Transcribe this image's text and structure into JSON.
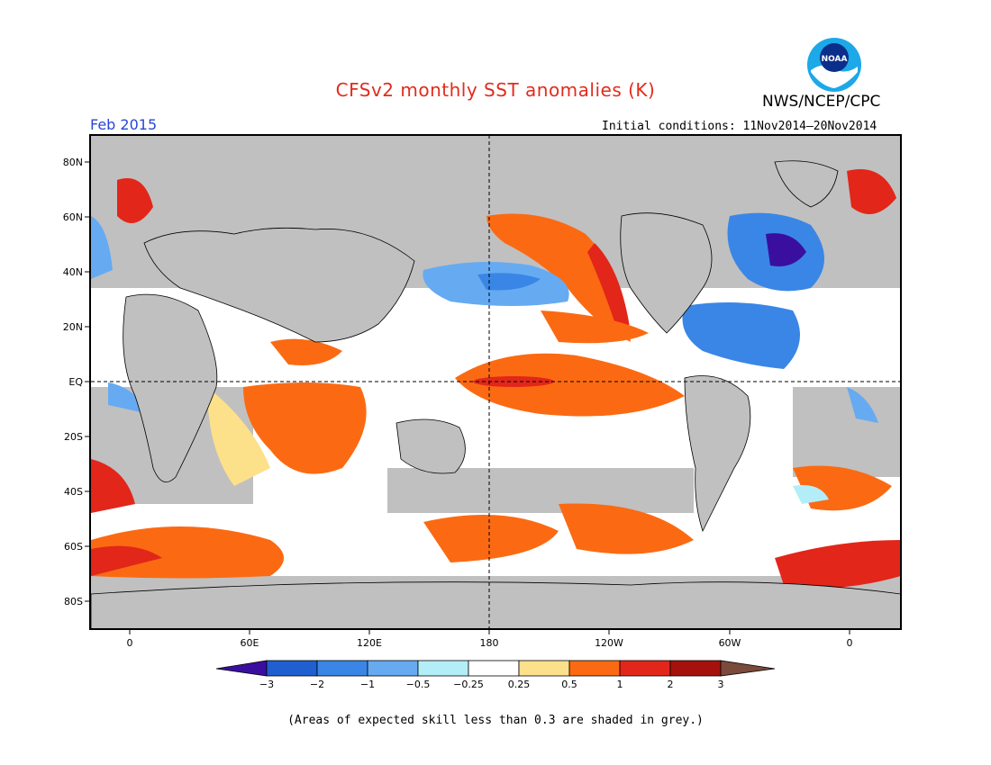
{
  "title": "CFSv2 monthly SST anomalies (K)",
  "valid_month": "Feb 2015",
  "agency": "NWS/NCEP/CPC",
  "logo_text": "NOAA",
  "initial_conditions": "Initial conditions: 11Nov2014–20Nov2014",
  "footnote": "(Areas of expected skill less than 0.3 are shaded in grey.)",
  "lat_labels": [
    "80N",
    "60N",
    "40N",
    "20N",
    "EQ",
    "20S",
    "40S",
    "60S",
    "80S"
  ],
  "lon_labels": [
    "0",
    "60E",
    "120E",
    "180",
    "120W",
    "60W",
    "0"
  ],
  "colorbar": {
    "labels": [
      "−3",
      "−2",
      "−1",
      "−0.5",
      "−0.25",
      "0.25",
      "0.5",
      "1",
      "2",
      "3"
    ],
    "colors": [
      "#3a0fa0",
      "#1f5fd0",
      "#3a86e6",
      "#66aaf2",
      "#b3eef8",
      "#ffffff",
      "#fde08a",
      "#fb6a12",
      "#e2261a",
      "#a5120e",
      "#7a4a3a"
    ]
  },
  "colors": {
    "land": "#c0c0c0",
    "no_skill_grey": "#c0c0c0",
    "title": "#e32b1c",
    "date": "#2747d6"
  }
}
